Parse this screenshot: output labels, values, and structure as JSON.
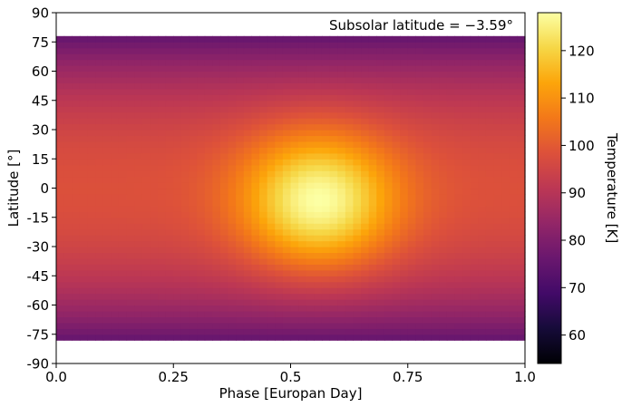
{
  "chart_data": {
    "type": "heatmap",
    "title": "",
    "annotation": "Subsolar latitude = −3.59°",
    "xlabel": "Phase [Europan Day]",
    "ylabel": "Latitude [°]",
    "colorbar_label": "Temperature [K]",
    "xlim": [
      0.0,
      1.0
    ],
    "ylim": [
      -90,
      90
    ],
    "x_ticks": [
      "0.0",
      "0.25",
      "0.5",
      "0.75",
      "1.0"
    ],
    "x_tick_values": [
      0.0,
      0.25,
      0.5,
      0.75,
      1.0
    ],
    "y_ticks": [
      "90",
      "75",
      "60",
      "45",
      "30",
      "15",
      "0",
      "-15",
      "-30",
      "-45",
      "-60",
      "-75",
      "-90"
    ],
    "y_tick_values": [
      90,
      75,
      60,
      45,
      30,
      15,
      0,
      -15,
      -30,
      -45,
      -60,
      -75,
      -90
    ],
    "data_lat_range": [
      -78,
      78
    ],
    "colormap": "inferno",
    "colorbar_range": [
      54,
      128
    ],
    "colorbar_ticks": [
      "60",
      "70",
      "80",
      "90",
      "100",
      "110",
      "120"
    ],
    "colorbar_tick_values": [
      60,
      70,
      80,
      90,
      100,
      110,
      120
    ],
    "temperature_model": {
      "peak_phase": 0.56,
      "peak_latitude": -8,
      "peak_temperature": 127,
      "night_equator_temperature": 98,
      "pole_temperature": 58,
      "hot_spot_phase_halfwidth": 0.16,
      "hot_spot_latitude_halfwidth": 38
    },
    "grid": false,
    "legend": "none"
  }
}
